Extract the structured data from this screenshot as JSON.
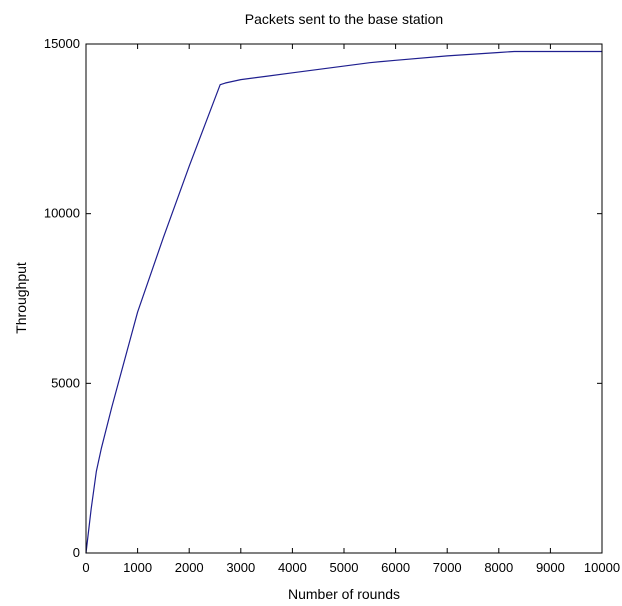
{
  "chart_data": {
    "type": "line",
    "title": "Packets sent to the base station",
    "xlabel": "Number of rounds",
    "ylabel": "Throughput",
    "xlim": [
      0,
      10000
    ],
    "ylim": [
      0,
      15000
    ],
    "x_ticks": [
      0,
      1000,
      2000,
      3000,
      4000,
      5000,
      6000,
      7000,
      8000,
      9000,
      10000
    ],
    "y_ticks": [
      0,
      5000,
      10000,
      15000
    ],
    "x_tick_labels": [
      "0",
      "1000",
      "2000",
      "3000",
      "4000",
      "5000",
      "6000",
      "7000",
      "8000",
      "9000",
      "10000"
    ],
    "y_tick_labels": [
      "0",
      "5000",
      "10000",
      "15000"
    ],
    "grid": false,
    "line_color": "#1f1f8f",
    "series": [
      {
        "x": [
          0,
          100,
          200,
          300,
          500,
          1000,
          1500,
          2000,
          2300,
          2600,
          2700,
          3000,
          3500,
          4000,
          4500,
          5000,
          5500,
          6000,
          7000,
          8000,
          8300,
          8500,
          9000,
          10000
        ],
        "y": [
          0,
          1300,
          2400,
          3100,
          4300,
          7100,
          9300,
          11400,
          12600,
          13800,
          13850,
          13950,
          14050,
          14150,
          14250,
          14350,
          14450,
          14520,
          14650,
          14750,
          14780,
          14780,
          14780,
          14780
        ]
      }
    ]
  }
}
